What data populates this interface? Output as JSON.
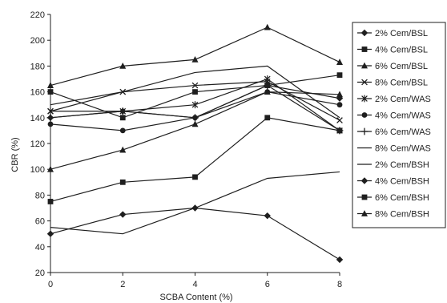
{
  "chart_data": {
    "type": "line",
    "xlabel": "SCBA Content (%)",
    "ylabel": "CBR (%)",
    "x": [
      0,
      2,
      4,
      6,
      8
    ],
    "xlim": [
      0,
      8
    ],
    "ylim": [
      20,
      220
    ],
    "yticks": [
      20,
      40,
      60,
      80,
      100,
      120,
      140,
      160,
      180,
      200,
      220
    ],
    "xticks": [
      0,
      2,
      4,
      6,
      8
    ],
    "grid": false,
    "legend_position": "right",
    "series": [
      {
        "name": "2% Cem/BSL",
        "marker": "diamond",
        "values": [
          140,
          145,
          140,
          165,
          155
        ]
      },
      {
        "name": "4% Cem/BSL",
        "marker": "square",
        "values": [
          160,
          140,
          160,
          165,
          173
        ]
      },
      {
        "name": "6% Cem/BSL",
        "marker": "triangle",
        "values": [
          165,
          180,
          185,
          210,
          183
        ]
      },
      {
        "name": "8% Cem/BSL",
        "marker": "x",
        "values": [
          145,
          160,
          165,
          168,
          138
        ]
      },
      {
        "name": "2% Cem/WAS",
        "marker": "star",
        "values": [
          145,
          145,
          150,
          170,
          130
        ]
      },
      {
        "name": "4% Cem/WAS",
        "marker": "circle",
        "values": [
          135,
          130,
          140,
          160,
          150
        ]
      },
      {
        "name": "6% Cem/WAS",
        "marker": "plus",
        "values": [
          140,
          145,
          140,
          165,
          130
        ]
      },
      {
        "name": "8% Cem/WAS",
        "marker": "none",
        "values": [
          150,
          160,
          175,
          180,
          140
        ]
      },
      {
        "name": "2% Cem/BSH",
        "marker": "none",
        "values": [
          55,
          50,
          70,
          93,
          98
        ]
      },
      {
        "name": "4% Cem/BSH",
        "marker": "diamond",
        "values": [
          50,
          65,
          70,
          64,
          30
        ]
      },
      {
        "name": "6% Cem/BSH",
        "marker": "square",
        "values": [
          75,
          90,
          94,
          140,
          130
        ]
      },
      {
        "name": "8% Cem/BSH",
        "marker": "triangle",
        "values": [
          100,
          115,
          135,
          160,
          158
        ]
      }
    ]
  }
}
